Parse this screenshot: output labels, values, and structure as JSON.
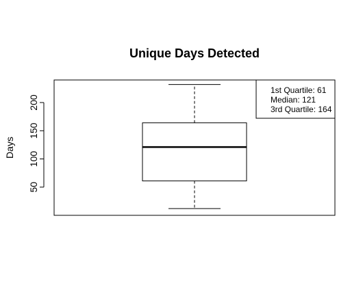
{
  "chart_data": {
    "type": "boxplot",
    "title": "Unique Days Detected",
    "xlabel": "",
    "ylabel": "Days",
    "ylim": [
      0,
      240
    ],
    "yticks": [
      50,
      100,
      150,
      200
    ],
    "box": {
      "whisker_low": 12,
      "q1": 61,
      "median": 121,
      "q3": 164,
      "whisker_high": 232
    },
    "grid": false,
    "legend_position": "top-right",
    "annotation": {
      "lines": [
        "1st Quartile: 61",
        "Median: 121",
        "3rd Quartile: 164"
      ]
    }
  }
}
